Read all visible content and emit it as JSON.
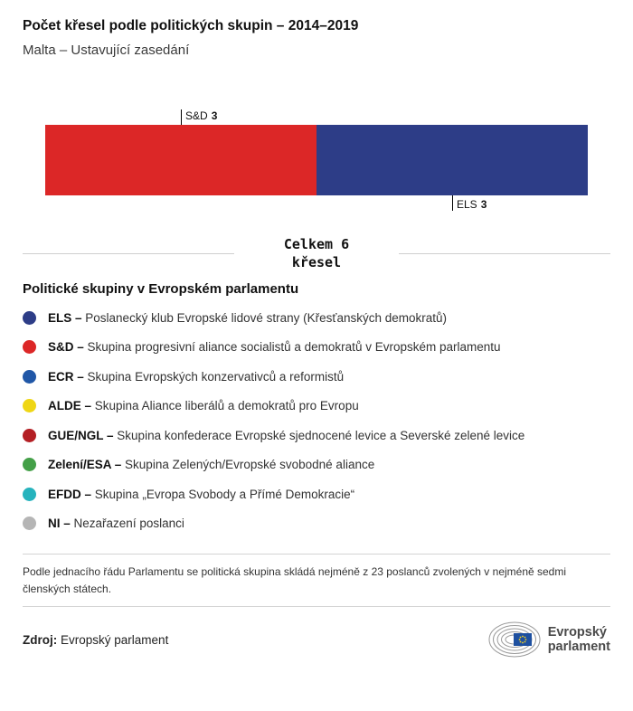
{
  "header": {
    "title": "Počet křesel podle politických skupin – 2014–2019",
    "subtitle": "Malta – Ustavující zasedání"
  },
  "chart_data": {
    "type": "bar",
    "variant": "horizontal-stacked",
    "title": "Počet křesel podle politických skupin – 2014–2019",
    "subtitle": "Malta – Ustavující zasedání",
    "series": [
      {
        "name": "S&D",
        "value": 3,
        "color": "#dc2727",
        "label_position": "above"
      },
      {
        "name": "ELS",
        "value": 3,
        "color": "#2d3d87",
        "label_position": "below"
      }
    ],
    "total": 6,
    "total_label_line1": "Celkem 6",
    "total_label_line2": "křesel"
  },
  "legend": {
    "heading": "Politické skupiny v Evropském parlamentu",
    "items": [
      {
        "abbr": "ELS –",
        "desc": "Poslanecký klub Evropské lidové strany (Křesťanských demokratů)",
        "color": "#2d3d87"
      },
      {
        "abbr": "S&D –",
        "desc": "Skupina progresivní aliance socialistů a demokratů v Evropském parlamentu",
        "color": "#dc2727"
      },
      {
        "abbr": "ECR –",
        "desc": "Skupina Evropských konzervativců a reformistů",
        "color": "#2057a7"
      },
      {
        "abbr": "ALDE –",
        "desc": "Skupina Aliance liberálů a demokratů pro Evropu",
        "color": "#efd615"
      },
      {
        "abbr": "GUE/NGL –",
        "desc": "Skupina konfederace Evropské sjednocené levice a Severské zelené levice",
        "color": "#b41f24"
      },
      {
        "abbr": "Zelení/ESA –",
        "desc": "Skupina Zelených/Evropské svobodné aliance",
        "color": "#44a048"
      },
      {
        "abbr": "EFDD –",
        "desc": "Skupina „Evropa Svobody a Přímé Demokracie“",
        "color": "#26b3bd"
      },
      {
        "abbr": "NI –",
        "desc": "Nezařazení poslanci",
        "color": "#b5b5b5"
      }
    ]
  },
  "footnote": "Podle jednacího řádu Parlamentu se politická skupina skládá nejméně z 23 poslanců zvolených v nejméně sedmi členských státech.",
  "source": {
    "label": "Zdroj:",
    "value": "Evropský parlament"
  },
  "logo": {
    "line1": "Evropský",
    "line2": "parlament"
  }
}
